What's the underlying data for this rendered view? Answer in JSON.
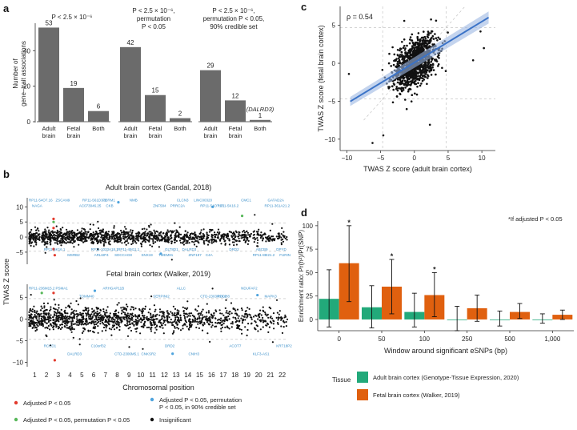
{
  "panel_labels": {
    "a": "a",
    "b": "b",
    "c": "c",
    "d": "d"
  },
  "colors": {
    "bar_gray": "#6b6b6b",
    "point": "#111111",
    "red": "#e23b2e",
    "blue": "#4ea3dd",
    "green": "#58b85a",
    "fit_line": "#3b73c7",
    "gtex": "#22a97a",
    "walker": "#e0600f"
  },
  "chart_data": [
    {
      "id": "a",
      "type": "bar",
      "ylabel": "Number of gene–trait associations",
      "ylim": [
        0,
        55
      ],
      "yticks": [
        "0",
        "20",
        "40"
      ],
      "groups": [
        {
          "title_lines": [
            "P < 2.5 × 10⁻⁶"
          ],
          "categories": [
            "Adult brain",
            "Fetal brain",
            "Both"
          ],
          "values": [
            53,
            19,
            6
          ],
          "labels": [
            "53",
            "19",
            "6"
          ]
        },
        {
          "title_lines": [
            "P < 2.5 × 10⁻⁶,",
            "permutation",
            "P < 0.05"
          ],
          "categories": [
            "Adult brain",
            "Fetal brain",
            "Both"
          ],
          "values": [
            42,
            15,
            2
          ],
          "labels": [
            "42",
            "15",
            "2"
          ]
        },
        {
          "title_lines": [
            "P < 2.5 × 10⁻⁶,",
            "permutation P < 0.05,",
            "90% credible set"
          ],
          "categories": [
            "Adult brain",
            "Fetal brain",
            "Both"
          ],
          "values": [
            29,
            12,
            1
          ],
          "labels": [
            "29",
            "12",
            "1"
          ],
          "extra_label": "(DALRD3)"
        }
      ]
    },
    {
      "id": "b",
      "type": "scatter",
      "xlabel": "Chromosomal position",
      "ylabel": "TWAS Z score",
      "chromosomes": [
        "1",
        "2",
        "3",
        "4",
        "5",
        "6",
        "7",
        "8",
        "9",
        "10",
        "11",
        "12",
        "13",
        "14",
        "15",
        "16",
        "17",
        "18",
        "19",
        "20",
        "21",
        "22"
      ],
      "yticks_top": [
        "10",
        "5",
        "0",
        "−5"
      ],
      "yticks_bottom": [
        "5",
        "0",
        "−5",
        "−10"
      ],
      "subplots": [
        {
          "title": "Adult brain cortex (Gandal, 2018)",
          "ylim": [
            -9,
            13
          ],
          "genes": [
            "RP11-54O7.16",
            "SDCCAG8",
            "RP11-54O7.17",
            "DPYD",
            "PBRM1",
            "ZNF197",
            "RP11-361A21.2",
            "RP11-1033A18.1",
            "CLCN3",
            "RP11-88I21.2",
            "AC073046.25",
            "GLT8D1",
            "CMC1",
            "MSRB2",
            "ZNF584",
            "DRD2",
            "ZSCAN9",
            "SNX19",
            "RP11-5K16.2",
            "RP11-5K16.1",
            "NMB",
            "C4A",
            "NAGA",
            "RP11-49I11.1",
            "LINC00320",
            "FURIN",
            "CKB",
            "DALRD3",
            "GATAD2A",
            "ARL6IP4",
            "PRRC2A",
            "ABCB9",
            "RP11-561D3.1",
            "TMEM81"
          ],
          "red_points": [
            {
              "x": 3.1,
              "y": 6
            },
            {
              "x": 3.1,
              "y": 3
            },
            {
              "x": 3.1,
              "y": -4
            },
            {
              "x": 3.2,
              "y": -6
            }
          ],
          "green_points": [
            {
              "x": 19.1,
              "y": 7
            },
            {
              "x": 3.1,
              "y": 5
            }
          ],
          "blue_points": [
            {
              "x": 8.6,
              "y": 11.5
            },
            {
              "x": 16.6,
              "y": 10
            },
            {
              "x": 12.2,
              "y": -5.5
            }
          ]
        },
        {
          "title": "Fetal brain cortex (Walker, 2019)",
          "ylim": [
            -11,
            8
          ],
          "genes": [
            "RP11-236M15.2",
            "CTD-2306M5.1",
            "CTD-2303H24.2",
            "KRT18P2",
            "ARHGAP11B",
            "CNIH3",
            "MAPK3",
            "C10orf32",
            "ALLC",
            "KLF3-AS1",
            "TOMM40",
            "DRD2",
            "NDUFAF2",
            "DALRD3",
            "SERPINI2",
            "ACOT7",
            "PSMA1",
            "CNKSR2",
            "PCDH8",
            "RCCD1"
          ],
          "red_points": [
            {
              "x": 3.1,
              "y": 6
            },
            {
              "x": 3.2,
              "y": -9.5
            }
          ],
          "green_points": [
            {
              "x": 2.1,
              "y": 6
            }
          ],
          "blue_points": [
            {
              "x": 6.6,
              "y": 6.5
            },
            {
              "x": 20.4,
              "y": 5.5
            },
            {
              "x": 13.2,
              "y": -8
            }
          ]
        }
      ],
      "legend": [
        "Adjusted P < 0.05",
        "Adjusted P < 0.05, permutation P < 0.05, in 90% credible set",
        "Adjusted P < 0.05, permutation P < 0.05",
        "Insignificant"
      ]
    },
    {
      "id": "c",
      "type": "scatter",
      "annotation": "ρ = 0.54",
      "xlabel": "TWAS Z score (adult brain cortex)",
      "ylabel": "TWAS Z score (fetal brain cortex)",
      "xlim": [
        -11,
        12
      ],
      "ylim": [
        -11.5,
        7.5
      ],
      "xticks": [
        -10,
        -5,
        0,
        5,
        10
      ],
      "yticks": [
        5,
        0,
        -5,
        -10
      ],
      "xtick_labels": [
        "−10",
        "−5",
        "0",
        "5",
        "10"
      ],
      "ytick_labels": [
        "5",
        "0",
        "−5",
        "−10"
      ],
      "regression": {
        "slope": 0.54,
        "intercept": 0.1
      }
    },
    {
      "id": "d",
      "type": "bar",
      "annotation": "*If adjusted P < 0.05",
      "xlabel": "Window around significant eSNPs (bp)",
      "ylabel": "Enrichment ratio: Pr(h²)/Pr(SNP)",
      "ylim": [
        -12,
        105
      ],
      "yticks": [
        0,
        25,
        50,
        75,
        100
      ],
      "ytick_labels": [
        "0",
        "25",
        "50",
        "75",
        "100"
      ],
      "categories": [
        "0",
        "50",
        "100",
        "250",
        "500",
        "1,000"
      ],
      "series": [
        {
          "name": "Adult brain cortex (Genotype-Tissue Expression, 2020)",
          "values": [
            22,
            13,
            8,
            0,
            0,
            0
          ],
          "err_low": [
            -8,
            -9,
            -8,
            -12,
            -7,
            -4
          ],
          "err_high": [
            53,
            36,
            28,
            14,
            9,
            6
          ]
        },
        {
          "name": "Fetal brain cortex (Walker, 2019)",
          "values": [
            60,
            35,
            26,
            12,
            8,
            5
          ],
          "err_low": [
            19,
            6,
            3,
            -2,
            1,
            0
          ],
          "err_high": [
            100,
            64,
            50,
            26,
            17,
            10
          ]
        }
      ],
      "significant": [
        {
          "series": 1,
          "category": 0,
          "label": "*"
        },
        {
          "series": 1,
          "category": 1,
          "label": "*"
        },
        {
          "series": 1,
          "category": 2,
          "label": "*"
        }
      ],
      "legend_title": "Tissue"
    }
  ]
}
